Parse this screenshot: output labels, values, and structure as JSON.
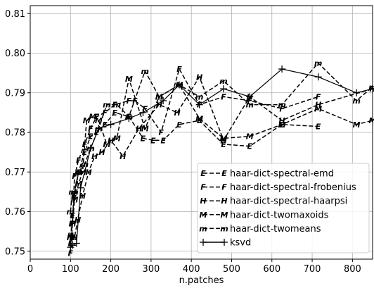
{
  "chart_data": {
    "type": "line",
    "title": "",
    "xlabel": "n.patches",
    "ylabel": "",
    "xlim": [
      0,
      850
    ],
    "ylim": [
      0.748,
      0.812
    ],
    "xticks": [
      0,
      100,
      200,
      300,
      400,
      500,
      600,
      700,
      800
    ],
    "yticks": [
      0.75,
      0.76,
      0.77,
      0.78,
      0.79,
      0.8,
      0.81
    ],
    "ytick_labels": [
      "0.75",
      "0.76",
      "0.77",
      "0.78",
      "0.79",
      "0.80",
      "0.81"
    ],
    "grid": true,
    "legend_position": "lower-right",
    "series": [
      {
        "name": "haar-dict-spectral-emd",
        "marker": "E",
        "dash": "dashed",
        "x": [
          100,
          105,
          110,
          120,
          135,
          150,
          165,
          185,
          210,
          245,
          280,
          305,
          330,
          370,
          420,
          480,
          545,
          625,
          715
        ],
        "y": [
          0.752,
          0.759,
          0.764,
          0.77,
          0.775,
          0.779,
          0.78,
          0.782,
          0.785,
          0.784,
          0.7785,
          0.778,
          0.778,
          0.782,
          0.783,
          0.777,
          0.7765,
          0.782,
          0.7815
        ]
      },
      {
        "name": "haar-dict-spectral-frobenius",
        "marker": "F",
        "dash": "dashed",
        "x": [
          100,
          105,
          110,
          120,
          135,
          150,
          165,
          185,
          210,
          245,
          260,
          285,
          325,
          370,
          420,
          480,
          545,
          625,
          715
        ],
        "y": [
          0.7495,
          0.757,
          0.769,
          0.773,
          0.777,
          0.781,
          0.784,
          0.785,
          0.787,
          0.788,
          0.788,
          0.786,
          0.78,
          0.796,
          0.787,
          0.789,
          0.788,
          0.786,
          0.789
        ]
      },
      {
        "name": "haar-dict-spectral-haarpsi",
        "marker": "H",
        "dash": "dashed",
        "x": [
          100,
          105,
          110,
          118,
          130,
          145,
          160,
          178,
          200,
          230,
          270,
          320,
          365,
          420,
          480,
          545,
          625,
          715,
          850
        ],
        "y": [
          0.754,
          0.7535,
          0.7535,
          0.758,
          0.764,
          0.77,
          0.774,
          0.775,
          0.778,
          0.774,
          0.781,
          0.787,
          0.785,
          0.794,
          0.778,
          0.789,
          0.783,
          0.787,
          0.791
        ]
      },
      {
        "name": "haar-dict-twomaxoids",
        "marker": "M",
        "dash": "dashed",
        "x": [
          100,
          105,
          110,
          120,
          130,
          140,
          155,
          170,
          190,
          215,
          245,
          285,
          320,
          370,
          420,
          480,
          545,
          625,
          715,
          810,
          850
        ],
        "y": [
          0.7535,
          0.757,
          0.763,
          0.767,
          0.77,
          0.783,
          0.784,
          0.783,
          0.777,
          0.7785,
          0.7935,
          0.781,
          0.789,
          0.792,
          0.7835,
          0.7785,
          0.779,
          0.782,
          0.786,
          0.782,
          0.783
        ]
      },
      {
        "name": "haar-dict-twomeans",
        "marker": "m",
        "dash": "dashed",
        "x": [
          100,
          105,
          110,
          120,
          135,
          150,
          170,
          190,
          215,
          245,
          285,
          320,
          370,
          420,
          480,
          545,
          625,
          715,
          810,
          850
        ],
        "y": [
          0.76,
          0.765,
          0.765,
          0.77,
          0.772,
          0.776,
          0.781,
          0.787,
          0.787,
          0.784,
          0.7955,
          0.789,
          0.792,
          0.789,
          0.793,
          0.787,
          0.787,
          0.7975,
          0.788,
          0.7915
        ]
      },
      {
        "name": "ksvd",
        "marker": "+",
        "dash": "solid",
        "x": [
          100,
          105,
          115,
          125,
          150,
          170,
          200,
          245,
          280,
          330,
          370,
          420,
          480,
          545,
          625,
          715,
          810,
          850
        ],
        "y": [
          0.751,
          0.7515,
          0.752,
          0.766,
          0.776,
          0.781,
          0.782,
          0.7835,
          0.785,
          0.788,
          0.792,
          0.787,
          0.791,
          0.789,
          0.796,
          0.794,
          0.79,
          0.791
        ]
      }
    ]
  }
}
